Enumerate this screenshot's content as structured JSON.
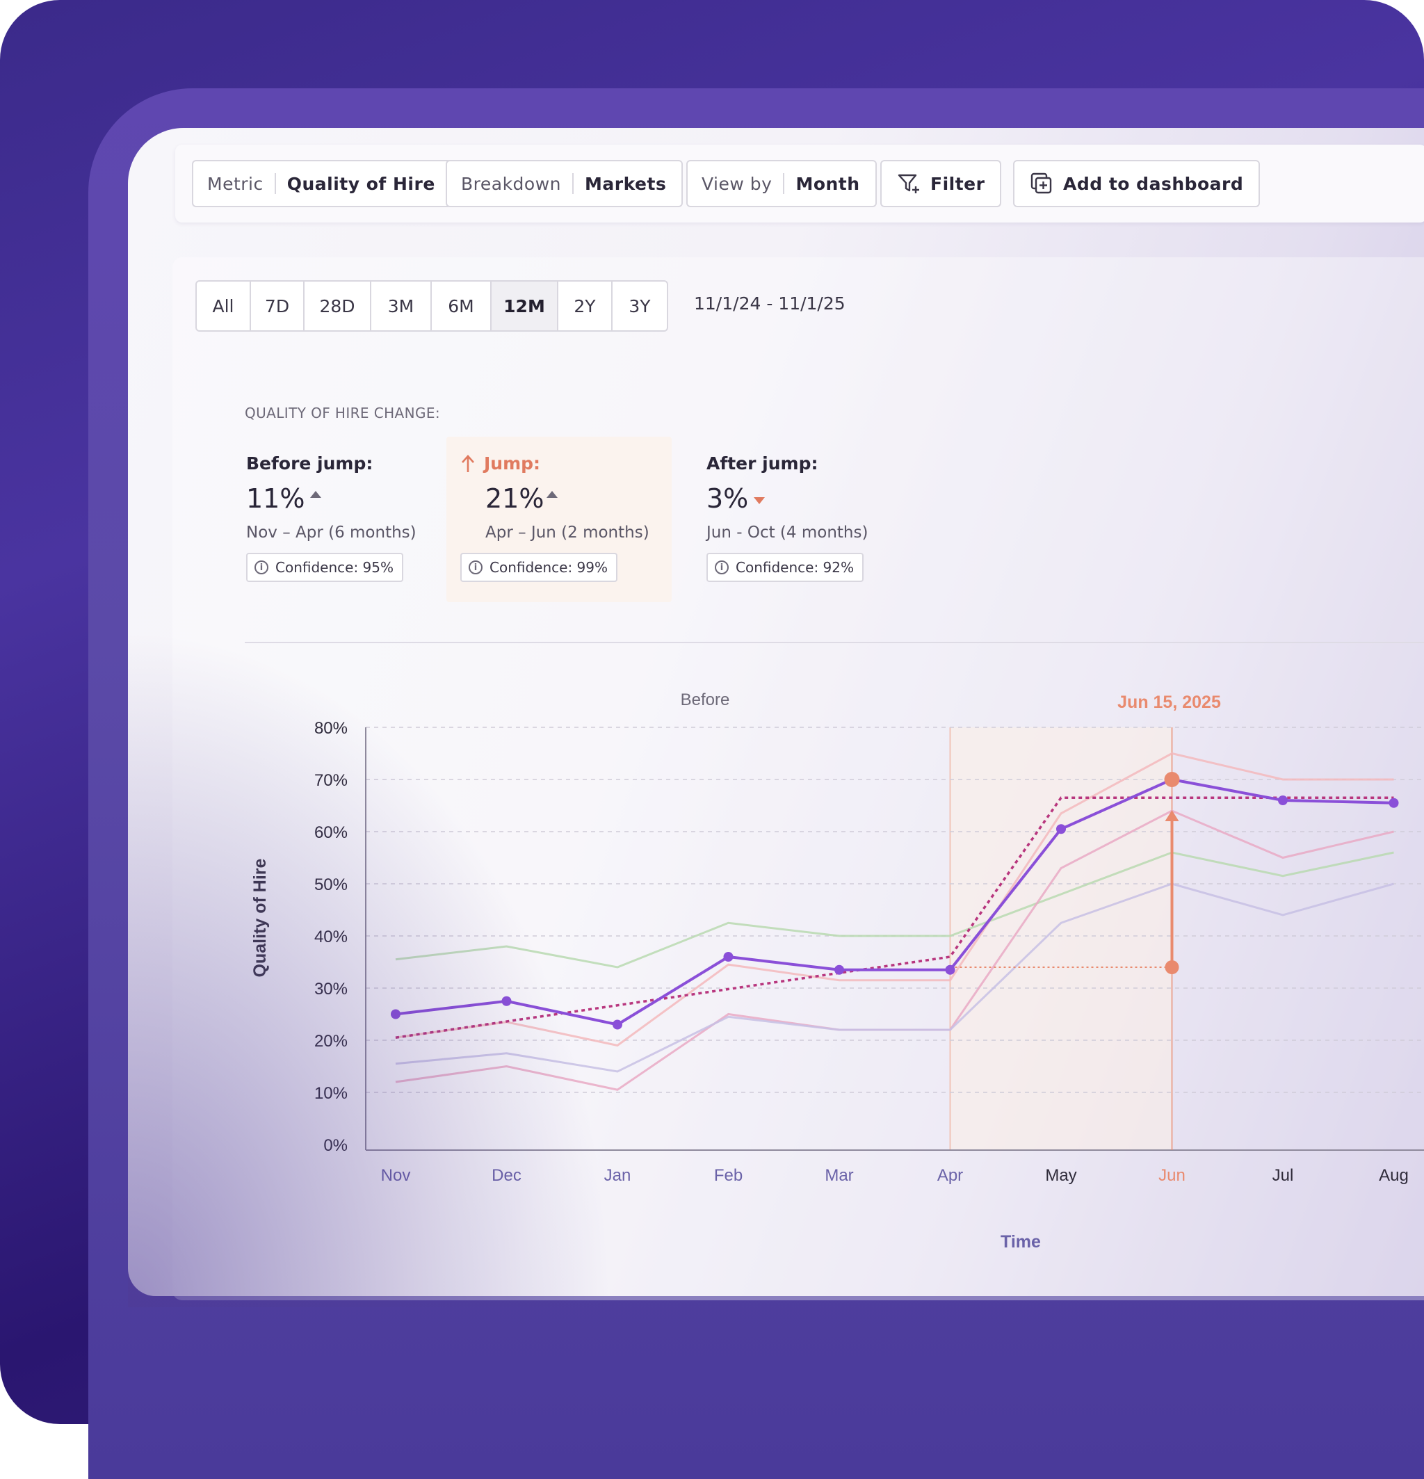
{
  "toolbar": {
    "metric": {
      "key": "Metric",
      "value": "Quality of Hire"
    },
    "breakdown": {
      "key": "Breakdown",
      "value": "Markets"
    },
    "viewby": {
      "key": "View by",
      "value": "Month"
    },
    "filter_label": "Filter",
    "add_label": "Add to dashboard"
  },
  "ranges": [
    "All",
    "7D",
    "28D",
    "3M",
    "6M",
    "12M",
    "2Y",
    "3Y"
  ],
  "selected_range": "12M",
  "date_range": "11/1/24 - 11/1/25",
  "summary": {
    "label": "QUALITY OF HIRE CHANGE:",
    "before": {
      "title": "Before jump:",
      "value": "11%",
      "range": "Nov – Apr (6 months)",
      "confidence": "Confidence: 95%"
    },
    "jump": {
      "title": "Jump:",
      "value": "21%",
      "range": "Apr – Jun (2 months)",
      "confidence": "Confidence: 99%"
    },
    "after": {
      "title": "After jump:",
      "value": "3%",
      "range": "Jun - Oct (4 months)",
      "confidence": "Confidence: 92%"
    }
  },
  "colors": {
    "primary": "#8a4fd8",
    "trend": "#b8367e",
    "jump": "#e98a6e",
    "green": "#b9d9b0",
    "pink": "#f3b8bc",
    "lavender": "#c7c0e4",
    "rose": "#e9a9c4"
  },
  "chart_data": {
    "type": "line",
    "ylabel": "Quality of Hire",
    "xlabel": "Time",
    "region_label": "Before",
    "event_label": "Jun 15, 2025",
    "event_category": "Jun",
    "categories": [
      "Nov",
      "Dec",
      "Jan",
      "Feb",
      "Mar",
      "Apr",
      "May",
      "Jun",
      "Jul",
      "Aug"
    ],
    "yticks": [
      "0%",
      "10%",
      "20%",
      "30%",
      "40%",
      "50%",
      "60%",
      "70%",
      "80%"
    ],
    "ylim": [
      0,
      80
    ],
    "series": [
      {
        "values": [
          25,
          27.5,
          23,
          36,
          33.5,
          33.5,
          60.5,
          70,
          66,
          65.5
        ],
        "markers": true
      },
      {
        "values": [
          35.5,
          38,
          34,
          42.5,
          40,
          40,
          48,
          56,
          51.5,
          56
        ]
      },
      {
        "values": [
          20.5,
          23.5,
          19,
          34.5,
          31.5,
          31.5,
          63.5,
          75,
          70,
          70
        ]
      },
      {
        "values": [
          12,
          15,
          10.5,
          25,
          22,
          22,
          53,
          64,
          55,
          60
        ]
      },
      {
        "values": [
          15.5,
          17.5,
          14,
          24.5,
          22,
          22,
          42.5,
          50,
          44,
          50
        ]
      }
    ],
    "trend": [
      {
        "x": "Nov",
        "y": 20.5
      },
      {
        "x": "Apr",
        "y": 36
      },
      {
        "x": "May",
        "y": 66.5
      },
      {
        "x": "Aug",
        "y": 66.5
      }
    ],
    "jump": {
      "from": 34,
      "to": 70
    }
  }
}
